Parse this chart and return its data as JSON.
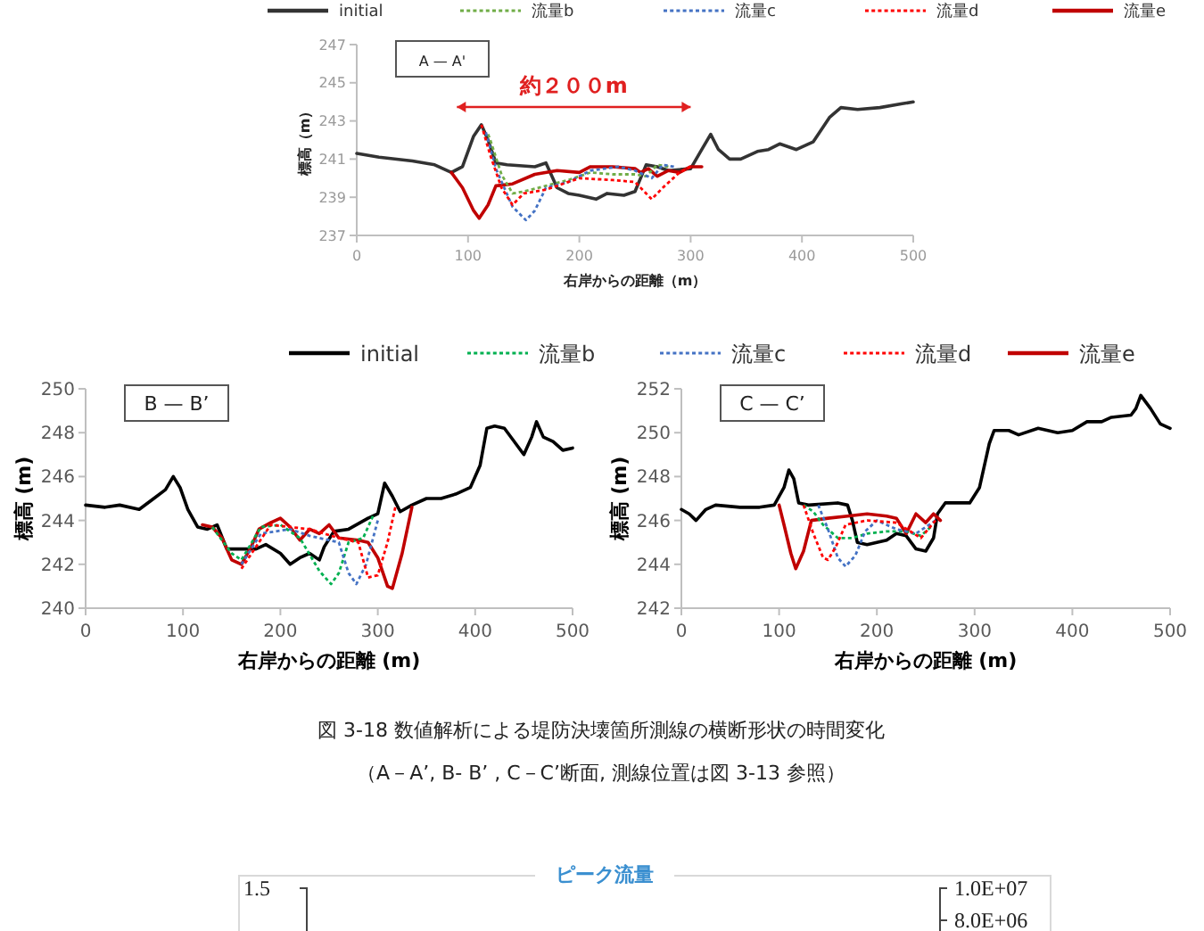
{
  "chart_data": [
    {
      "type": "line",
      "xlabel": "右岸からの距離（m）",
      "ylabel": "標高（m）",
      "xlim": [
        0,
        500
      ],
      "xticks": [
        0,
        100,
        200,
        300,
        400,
        500
      ],
      "ylim": [
        237,
        247
      ],
      "yticks": [
        237,
        239,
        241,
        243,
        245,
        247
      ],
      "legend": "top",
      "line_style": "solid",
      "annotations": [
        "A — A'",
        "約２００m"
      ],
      "series": [
        {
          "name": "initial",
          "color": "#333333",
          "x": [
            0,
            20,
            50,
            70,
            85,
            95,
            105,
            112,
            118,
            125,
            135,
            160,
            170,
            180,
            190,
            200,
            215,
            225,
            240,
            250,
            260,
            270,
            280,
            300,
            310,
            318,
            325,
            335,
            345,
            360,
            370,
            380,
            395,
            410,
            425,
            435,
            450,
            470,
            490,
            500
          ],
          "values": [
            241.3,
            241.1,
            240.9,
            240.7,
            240.3,
            240.6,
            242.2,
            242.8,
            242.0,
            240.8,
            240.7,
            240.6,
            240.8,
            239.5,
            239.2,
            239.1,
            238.9,
            239.2,
            239.1,
            239.3,
            240.7,
            240.6,
            240.4,
            240.5,
            241.5,
            242.3,
            241.5,
            241.0,
            241.0,
            241.4,
            241.5,
            241.8,
            241.5,
            241.9,
            243.2,
            243.7,
            243.6,
            243.7,
            243.9,
            244.0
          ]
        },
        {
          "name": "流量b",
          "color": "#70ad47",
          "line_style": "dotted",
          "x": [
            118,
            120,
            130,
            140,
            150,
            170,
            190,
            210,
            230,
            250,
            260,
            270,
            280
          ],
          "values": [
            242.3,
            242.0,
            240.2,
            239.2,
            239.3,
            239.6,
            239.9,
            240.3,
            240.2,
            240.2,
            240.1,
            240.7,
            240.6
          ]
        },
        {
          "name": "流量c",
          "color": "#4472c4",
          "line_style": "dotted",
          "x": [
            116,
            125,
            140,
            152,
            160,
            170,
            190,
            210,
            235,
            250,
            265,
            275,
            285
          ],
          "values": [
            242.4,
            240.5,
            238.5,
            237.8,
            238.3,
            239.5,
            239.8,
            240.4,
            240.6,
            240.4,
            240.0,
            240.7,
            240.6
          ]
        },
        {
          "name": "流量d",
          "color": "#ff0000",
          "line_style": "dotted",
          "x": [
            112,
            120,
            130,
            140,
            150,
            170,
            200,
            230,
            250,
            265,
            275,
            290,
            300
          ],
          "values": [
            242.8,
            241.2,
            239.5,
            238.6,
            239.2,
            239.4,
            240.0,
            239.9,
            239.8,
            238.9,
            239.5,
            240.3,
            240.6
          ]
        },
        {
          "name": "流量e",
          "color": "#c00000",
          "x": [
            85,
            95,
            105,
            110,
            118,
            125,
            140,
            160,
            180,
            200,
            210,
            230,
            250,
            255,
            262,
            270,
            280,
            290,
            300,
            310
          ],
          "values": [
            240.3,
            239.5,
            238.3,
            237.9,
            238.6,
            239.6,
            239.7,
            240.2,
            240.4,
            240.3,
            240.6,
            240.6,
            240.5,
            240.3,
            240.5,
            240.1,
            240.4,
            240.3,
            240.6,
            240.6
          ]
        }
      ]
    },
    {
      "type": "line",
      "xlabel": "右岸からの距離 (m)",
      "ylabel": "標高 (m)",
      "xlim": [
        0,
        500
      ],
      "xticks": [
        0,
        100,
        200,
        300,
        400,
        500
      ],
      "ylim": [
        240,
        250
      ],
      "yticks": [
        240,
        242,
        244,
        246,
        248,
        250
      ],
      "legend": "top",
      "line_style": "solid",
      "annotations": [
        "B — B’"
      ],
      "series": [
        {
          "name": "initial",
          "color": "#000000",
          "x": [
            0,
            20,
            35,
            55,
            70,
            82,
            90,
            97,
            105,
            115,
            125,
            135,
            145,
            160,
            175,
            185,
            200,
            210,
            220,
            230,
            240,
            245,
            255,
            270,
            290,
            300,
            307,
            315,
            323,
            335,
            350,
            365,
            380,
            395,
            405,
            412,
            420,
            430,
            440,
            450,
            458,
            463,
            470,
            480,
            490,
            500
          ],
          "values": [
            244.7,
            244.6,
            244.7,
            244.5,
            245.0,
            245.4,
            246.0,
            245.5,
            244.5,
            243.7,
            243.6,
            243.8,
            242.7,
            242.7,
            242.7,
            242.9,
            242.5,
            242.0,
            242.3,
            242.5,
            242.2,
            242.8,
            243.5,
            243.6,
            244.1,
            244.3,
            245.7,
            245.1,
            244.4,
            244.7,
            245.0,
            245.0,
            245.2,
            245.5,
            246.5,
            248.2,
            248.3,
            248.2,
            247.6,
            247.0,
            247.8,
            248.5,
            247.8,
            247.6,
            247.2,
            247.3
          ]
        },
        {
          "name": "流量b",
          "color": "#00b050",
          "line_style": "dotted",
          "x": [
            130,
            150,
            160,
            180,
            200,
            220,
            240,
            252,
            260,
            270,
            285,
            295
          ],
          "values": [
            243.7,
            242.5,
            242.2,
            243.7,
            243.8,
            243.2,
            241.7,
            241.1,
            241.6,
            243.0,
            243.2,
            244.2
          ]
        },
        {
          "name": "流量c",
          "color": "#4472c4",
          "line_style": "dotted",
          "x": [
            160,
            180,
            210,
            230,
            260,
            270,
            278,
            288,
            300
          ],
          "values": [
            242.0,
            243.4,
            243.6,
            243.3,
            243.0,
            241.6,
            241.1,
            242.0,
            244.0
          ]
        },
        {
          "name": "流量d",
          "color": "#ff0000",
          "line_style": "dotted",
          "x": [
            160,
            190,
            230,
            260,
            280,
            290,
            300,
            310,
            318
          ],
          "values": [
            241.8,
            243.8,
            243.6,
            243.2,
            243.0,
            241.4,
            241.5,
            243.0,
            244.6
          ]
        },
        {
          "name": "流量e",
          "color": "#c00000",
          "x": [
            120,
            130,
            140,
            150,
            160,
            170,
            178,
            190,
            200,
            210,
            220,
            230,
            240,
            250,
            260,
            280,
            290,
            300,
            310,
            315,
            325,
            335
          ],
          "values": [
            243.8,
            243.7,
            243.2,
            242.2,
            242.0,
            242.8,
            243.6,
            243.9,
            244.1,
            243.7,
            243.1,
            243.6,
            243.4,
            243.8,
            243.2,
            243.1,
            243.0,
            242.3,
            241.0,
            240.9,
            242.5,
            244.6
          ]
        }
      ]
    },
    {
      "type": "line",
      "xlabel": "右岸からの距離 (m)",
      "ylabel": "標高 (m)",
      "xlim": [
        0,
        500
      ],
      "xticks": [
        0,
        100,
        200,
        300,
        400,
        500
      ],
      "ylim": [
        242,
        252
      ],
      "yticks": [
        242,
        244,
        246,
        248,
        250,
        252
      ],
      "line_style": "solid",
      "annotations": [
        "C — C’",
        "図 3-18  数値解析による堤防決壊箇所測線の横断形状の時間変化",
        "（A－A’, B- B’ , C－C’断面, 測線位置は図 3-13 参照）"
      ],
      "series": [
        {
          "color": "#000000",
          "x": [
            0,
            8,
            15,
            25,
            35,
            60,
            80,
            95,
            105,
            110,
            115,
            120,
            130,
            160,
            170,
            175,
            180,
            190,
            200,
            210,
            220,
            230,
            240,
            250,
            258,
            262,
            270,
            280,
            295,
            305,
            315,
            320,
            335,
            345,
            365,
            385,
            400,
            415,
            430,
            440,
            460,
            465,
            470,
            480,
            490,
            500
          ],
          "values": [
            246.5,
            246.3,
            246.0,
            246.5,
            246.7,
            246.6,
            246.6,
            246.7,
            247.5,
            248.3,
            247.9,
            246.8,
            246.7,
            246.8,
            246.7,
            246.0,
            245.0,
            244.9,
            245.0,
            245.1,
            245.4,
            245.3,
            244.7,
            244.6,
            245.2,
            246.3,
            246.8,
            246.8,
            246.8,
            247.5,
            249.5,
            250.1,
            250.1,
            249.9,
            250.2,
            250.0,
            250.1,
            250.5,
            250.5,
            250.7,
            250.8,
            251.1,
            251.7,
            251.1,
            250.4,
            250.2
          ]
        },
        {
          "color": "#00b050",
          "line_style": "dotted",
          "x": [
            125,
            135,
            145,
            160,
            175,
            190,
            210,
            230,
            245,
            255
          ],
          "values": [
            246.7,
            246.4,
            245.8,
            245.2,
            245.2,
            245.4,
            245.5,
            245.5,
            245.3,
            245.7
          ]
        },
        {
          "color": "#4472c4",
          "line_style": "dotted",
          "x": [
            140,
            150,
            160,
            168,
            178,
            188,
            200,
            220,
            240,
            260
          ],
          "values": [
            246.7,
            245.6,
            244.3,
            243.9,
            244.4,
            245.5,
            246.0,
            245.6,
            245.4,
            246.0
          ]
        },
        {
          "color": "#ff0000",
          "line_style": "dotted",
          "x": [
            125,
            135,
            145,
            150,
            158,
            168,
            190,
            220,
            245,
            260
          ],
          "values": [
            246.7,
            245.4,
            244.3,
            244.2,
            244.8,
            245.8,
            246.0,
            245.9,
            245.2,
            246.0
          ]
        },
        {
          "color": "#c00000",
          "x": [
            100,
            105,
            112,
            117,
            125,
            133,
            150,
            170,
            190,
            210,
            220,
            230,
            240,
            250,
            258,
            265
          ],
          "values": [
            246.7,
            245.8,
            244.5,
            243.8,
            244.6,
            246.0,
            246.1,
            246.2,
            246.3,
            246.2,
            246.1,
            245.4,
            246.3,
            245.9,
            246.3,
            246.0
          ]
        }
      ]
    },
    {
      "type": "other",
      "annotations": [
        "ピーク流量",
        "1.5",
        "1.0E+07",
        "8.0E+06"
      ]
    }
  ]
}
